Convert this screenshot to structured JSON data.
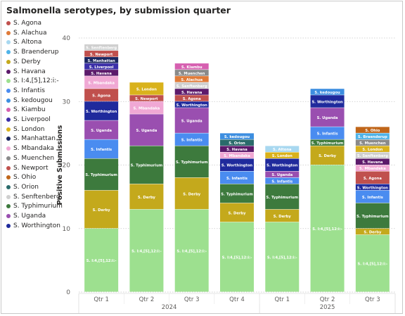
{
  "chart_data": {
    "type": "bar",
    "stacked": true,
    "title": "Salmonella serotypes, by submission quarter",
    "ylabel": "Positive Submissions",
    "xlabel": "",
    "ylim": [
      0,
      40
    ],
    "yticks": [
      0,
      10,
      20,
      30,
      40
    ],
    "grid": true,
    "legend_position": "left",
    "categories": [
      "Qtr 1",
      "Qtr 2",
      "Qtr 3",
      "Qtr 4",
      "Qtr 1",
      "Qtr 2",
      "Qtr 3"
    ],
    "year_groups": [
      {
        "label": "2024",
        "count": 4
      },
      {
        "label": "2025",
        "count": 3
      }
    ],
    "stack_order": [
      "S. I:4,[5],12:i:-",
      "S. Derby",
      "S. Typhimurium",
      "S. Infantis",
      "S. Uganda",
      "S. Worthington",
      "S. Agona",
      "S. Mbandaka",
      "S. Havana",
      "S. Liverpool",
      "S. Manhattan",
      "S. Newport",
      "S. Senftenberg",
      "S. London",
      "S. Alachua",
      "S. Muenchen",
      "S. Kiambu",
      "S. Orion",
      "S. kedougou",
      "S. Braenderup",
      "S. Ohio",
      "S. Altona"
    ],
    "series": [
      {
        "name": "S. Agona",
        "color": "#c0504d",
        "label": "S. Agona",
        "values": [
          2,
          0,
          1,
          0,
          0,
          0,
          2
        ]
      },
      {
        "name": "S. Alachua",
        "color": "#e07b39",
        "label": "S. Alachua",
        "values": [
          0,
          0,
          1,
          0,
          0,
          0,
          0
        ]
      },
      {
        "name": "S. Altona",
        "color": "#a8d8f0",
        "label": "S. Altona",
        "values": [
          0,
          0,
          0,
          0,
          1,
          0,
          0
        ]
      },
      {
        "name": "S. Braenderup",
        "color": "#4fb3e8",
        "label": "S. Braenderup",
        "values": [
          0,
          0,
          0,
          0,
          0,
          0,
          1
        ]
      },
      {
        "name": "S. Derby",
        "color": "#c4a91c",
        "label": "S. Derby",
        "values": [
          6,
          4,
          5,
          3,
          2,
          3,
          1
        ]
      },
      {
        "name": "S. Havana",
        "color": "#5c1a6b",
        "label": "S. Havana",
        "values": [
          1,
          0,
          1,
          1,
          0,
          0,
          1
        ]
      },
      {
        "name": "S. I:4,[5],12:i:-",
        "color": "#9de08f",
        "label": "S. I:4,[5],12:i:-",
        "values": [
          10,
          13,
          13,
          11,
          11,
          20,
          9
        ]
      },
      {
        "name": "S. Infantis",
        "color": "#4a8cf0",
        "label": "S. Infantis",
        "values": [
          3,
          0,
          2,
          2,
          1,
          2,
          2
        ]
      },
      {
        "name": "S. kedougou",
        "color": "#3d8ee0",
        "label": "S. kedougou",
        "values": [
          0,
          0,
          0,
          1,
          0,
          1,
          0
        ]
      },
      {
        "name": "S. Kiambu",
        "color": "#d660b0",
        "label": "S. Kiambu",
        "values": [
          0,
          0,
          1,
          0,
          0,
          0,
          0
        ]
      },
      {
        "name": "S. Liverpool",
        "color": "#3b2fa8",
        "label": "S. Liverpool",
        "values": [
          1,
          0,
          0,
          0,
          0,
          0,
          0
        ]
      },
      {
        "name": "S. London",
        "color": "#d9b21c",
        "label": "S. London",
        "values": [
          0,
          2,
          0,
          0,
          1,
          0,
          1
        ]
      },
      {
        "name": "S. Manhattan",
        "color": "#1a2660",
        "label": "S. Manhattan",
        "values": [
          1,
          0,
          0,
          0,
          0,
          0,
          0
        ]
      },
      {
        "name": "S. Mbandaka",
        "color": "#f0a8d4",
        "label": "S. Mbandaka",
        "values": [
          2,
          2,
          0,
          1,
          0,
          0,
          1
        ]
      },
      {
        "name": "S. Muenchen",
        "color": "#8a8a8a",
        "label": "S. Muenchen",
        "values": [
          0,
          0,
          1,
          0,
          0,
          0,
          1
        ]
      },
      {
        "name": "S. Newport",
        "color": "#c0504d",
        "label": "S. Newport",
        "values": [
          1,
          1,
          0,
          0,
          0,
          0,
          0
        ]
      },
      {
        "name": "S. Ohio",
        "color": "#c0661a",
        "label": "S. Ohio",
        "values": [
          0,
          0,
          0,
          0,
          0,
          0,
          1
        ]
      },
      {
        "name": "S. Orion",
        "color": "#2a6b6b",
        "label": "S. Orion",
        "values": [
          0,
          0,
          0,
          1,
          0,
          0,
          0
        ]
      },
      {
        "name": "S. Senftenberg",
        "color": "#cfcfcf",
        "label": "S. Senftenberg",
        "values": [
          1,
          0,
          1,
          0,
          0,
          0,
          1
        ]
      },
      {
        "name": "S. Typhimurium",
        "color": "#3d7a3d",
        "label": "S. Typhimurium",
        "values": [
          5,
          6,
          5,
          3,
          4,
          1,
          4
        ]
      },
      {
        "name": "S. Uganda",
        "color": "#9a4fb0",
        "label": "S. Uganda",
        "values": [
          3,
          5,
          4,
          0,
          1,
          3,
          0
        ]
      },
      {
        "name": "S. Worthington",
        "color": "#1f2a9c",
        "label": "S. Worthington",
        "values": [
          3,
          0,
          1,
          2,
          2,
          2,
          1
        ]
      }
    ]
  }
}
